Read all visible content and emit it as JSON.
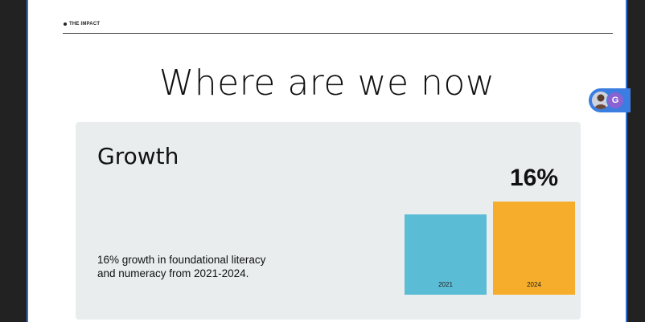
{
  "section": {
    "eyebrow": "THE IMPACT",
    "headline": "Where are we now"
  },
  "card": {
    "title": "Growth",
    "description": "16% growth in foundational literacy and numeracy from 2021-2024."
  },
  "chart_data": {
    "type": "bar",
    "categories": [
      "2021",
      "2024"
    ],
    "values": [
      1.0,
      1.16
    ],
    "annotations": [
      {
        "category": "2024",
        "text": "16%"
      }
    ],
    "colors": [
      "#5bbcd6",
      "#f5ad2b"
    ],
    "title": "",
    "xlabel": "",
    "ylabel": ""
  },
  "collaborators": {
    "initial": "G",
    "accent": "#3b7de0"
  }
}
